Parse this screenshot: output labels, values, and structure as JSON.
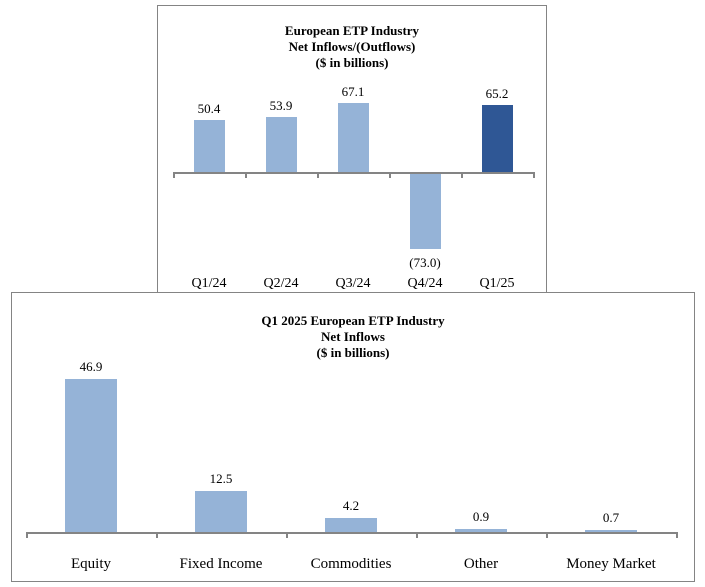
{
  "colors": {
    "bar_light": "#95B3D7",
    "bar_dark": "#2F5795",
    "axis": "#848484",
    "border": "#848484",
    "text": "#000000",
    "background": "#FFFFFF"
  },
  "chart_data": [
    {
      "type": "bar",
      "title": "European ETP Industry Net Inflows/(Outflows) ($ in billions)",
      "title_lines": [
        "European ETP Industry",
        "Net Inflows/(Outflows)",
        "($ in billions)"
      ],
      "categories": [
        "Q1/24",
        "Q2/24",
        "Q3/24",
        "Q4/24",
        "Q1/25"
      ],
      "values": [
        50.4,
        53.9,
        67.1,
        -73.0,
        65.2
      ],
      "labels": [
        "50.4",
        "53.9",
        "67.1",
        "(73.0)",
        "65.2"
      ],
      "bar_colors": [
        "#95B3D7",
        "#95B3D7",
        "#95B3D7",
        "#95B3D7",
        "#2F5795"
      ],
      "xlabel": "",
      "ylabel": "",
      "ylim": [
        -80,
        75
      ],
      "grid": false,
      "legend": false,
      "value_labels": true
    },
    {
      "type": "bar",
      "title": "Q1 2025 European ETP Industry Net Inflows ($ in billions)",
      "title_lines": [
        "Q1 2025 European ETP Industry",
        "Net Inflows",
        "($ in billions)"
      ],
      "categories": [
        "Equity",
        "Fixed Income",
        "Commodities",
        "Other",
        "Money Market"
      ],
      "values": [
        46.9,
        12.5,
        4.2,
        0.9,
        0.7
      ],
      "labels": [
        "46.9",
        "12.5",
        "4.2",
        "0.9",
        "0.7"
      ],
      "bar_colors": [
        "#95B3D7",
        "#95B3D7",
        "#95B3D7",
        "#95B3D7",
        "#95B3D7"
      ],
      "xlabel": "",
      "ylabel": "",
      "ylim": [
        0,
        50
      ],
      "grid": false,
      "legend": false,
      "value_labels": true
    }
  ]
}
